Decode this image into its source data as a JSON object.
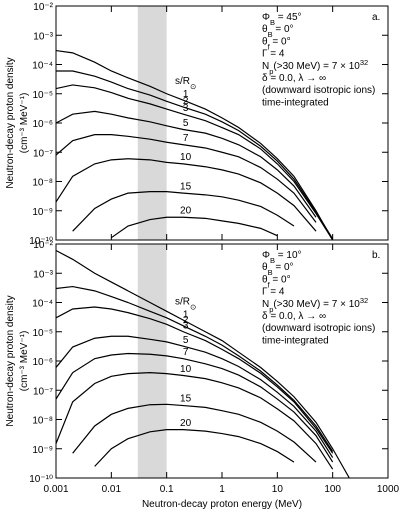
{
  "chart_data": [
    {
      "type": "line",
      "panel_label": "a.",
      "log_x": true,
      "log_y": true,
      "xtick_labels": false,
      "ylabel": [
        "Neutron-decay proton density",
        "(cm⁻³ MeV⁻¹)"
      ],
      "xlim": [
        0.001,
        1000
      ],
      "ylim": [
        1e-10,
        0.01
      ],
      "xticks": [
        0.001,
        0.01,
        0.1,
        1,
        10,
        100,
        1000
      ],
      "yticks": [
        {
          "value": 1e-10,
          "label": "10⁻¹⁰"
        },
        {
          "value": 1e-09,
          "label": "10⁻⁹"
        },
        {
          "value": 1e-08,
          "label": "10⁻⁸"
        },
        {
          "value": 1e-07,
          "label": "10⁻⁷"
        },
        {
          "value": 1e-06,
          "label": "10⁻⁶"
        },
        {
          "value": 1e-05,
          "label": "10⁻⁵"
        },
        {
          "value": 0.0001,
          "label": "10⁻⁴"
        },
        {
          "value": 0.001,
          "label": "10⁻³"
        },
        {
          "value": 0.01,
          "label": "10⁻²"
        }
      ],
      "shaded_band": [
        0.03,
        0.1
      ],
      "band_color": "#d9d9d9",
      "annotations": [
        [
          "Φ",
          {
            "sub": "B"
          },
          " = 45°"
        ],
        [
          "θ",
          {
            "sub": "B"
          },
          " = 0°"
        ],
        [
          "θ",
          {
            "sub": "f"
          },
          " = 0°"
        ],
        [
          "Γ = 4"
        ],
        [
          "N",
          {
            "sub": "p"
          },
          "(>30 MeV) = 7 × 10",
          {
            "sup": "32"
          }
        ],
        [
          "δ = 0.0, λ → ∞"
        ],
        [
          "(downward isotropic ions)"
        ],
        [
          "time-integrated"
        ]
      ],
      "legend_title": [
        "s/R",
        {
          "sub": "⊙"
        }
      ],
      "x": [
        0.001,
        0.002,
        0.005,
        0.01,
        0.02,
        0.05,
        0.1,
        0.2,
        0.5,
        1,
        2,
        5,
        10,
        20,
        50,
        100,
        200
      ],
      "series": [
        {
          "name": "1",
          "color": "#000000",
          "values": [
            0.0003,
            0.00025,
            0.00012,
            6e-05,
            3.5e-05,
            1.8e-05,
            1e-05,
            6e-06,
            3e-06,
            1.5e-06,
            7e-07,
            2e-07,
            6e-08,
            1.5e-08,
            1e-09,
            1e-10,
            null
          ]
        },
        {
          "name": "2",
          "color": "#000000",
          "values": [
            6e-05,
            6e-05,
            4e-05,
            2.5e-05,
            1.5e-05,
            9e-06,
            5.5e-06,
            3.5e-06,
            2e-06,
            1.1e-06,
            5.5e-07,
            1.6e-07,
            5e-08,
            1.2e-08,
            9e-10,
            1.1e-10,
            null
          ]
        },
        {
          "name": "3",
          "color": "#000000",
          "values": [
            1.5e-05,
            2e-05,
            1.6e-05,
            1.1e-05,
            7e-06,
            4.5e-06,
            3e-06,
            2e-06,
            1.2e-06,
            7e-07,
            4e-07,
            1.3e-07,
            4e-08,
            1e-08,
            8e-10,
            1e-10,
            null
          ]
        },
        {
          "name": "5",
          "color": "#000000",
          "values": [
            1e-06,
            2e-06,
            2.5e-06,
            2e-06,
            1.5e-06,
            1.1e-06,
            8e-07,
            6e-07,
            4.5e-07,
            3e-07,
            1.8e-07,
            7e-08,
            2.5e-08,
            7e-09,
            6e-10,
            null,
            null
          ]
        },
        {
          "name": "7",
          "color": "#000000",
          "values": [
            8e-08,
            2.5e-07,
            4e-07,
            4e-07,
            3.5e-07,
            2.8e-07,
            2.2e-07,
            1.8e-07,
            1.4e-07,
            1e-07,
            7e-08,
            3e-08,
            1.2e-08,
            4e-09,
            4e-10,
            null,
            null
          ]
        },
        {
          "name": "10",
          "color": "#000000",
          "values": [
            2e-09,
            1.5e-08,
            4e-08,
            5.5e-08,
            6e-08,
            5.5e-08,
            4.5e-08,
            4e-08,
            3.2e-08,
            2.5e-08,
            1.8e-08,
            9e-09,
            4e-09,
            1.5e-09,
            2e-10,
            null,
            null
          ]
        },
        {
          "name": "15",
          "color": "#000000",
          "values": [
            null,
            2e-10,
            1.2e-09,
            2.5e-09,
            4e-09,
            4.5e-09,
            4.5e-09,
            4e-09,
            3.5e-09,
            3e-09,
            2.3e-09,
            1.4e-09,
            7e-10,
            3e-10,
            null,
            null,
            null
          ]
        },
        {
          "name": "20",
          "color": "#000000",
          "values": [
            null,
            null,
            null,
            1.2e-10,
            3e-10,
            5e-10,
            6e-10,
            6e-10,
            5.5e-10,
            4.5e-10,
            3.7e-10,
            2.5e-10,
            1.4e-10,
            null,
            null,
            null,
            null
          ]
        }
      ]
    },
    {
      "type": "line",
      "panel_label": "b.",
      "log_x": true,
      "log_y": true,
      "xtick_labels": true,
      "xlabel": "Neutron-decay proton energy (MeV)",
      "ylabel": [
        "Neutron-decay proton density",
        "(cm⁻³ MeV⁻¹)"
      ],
      "xlim": [
        0.001,
        1000
      ],
      "ylim": [
        1e-10,
        0.01
      ],
      "xticks": [
        0.001,
        0.01,
        0.1,
        1,
        10,
        100,
        1000
      ],
      "yticks": [
        {
          "value": 1e-10,
          "label": "10⁻¹⁰"
        },
        {
          "value": 1e-09,
          "label": "10⁻⁹"
        },
        {
          "value": 1e-08,
          "label": "10⁻⁸"
        },
        {
          "value": 1e-07,
          "label": "10⁻⁷"
        },
        {
          "value": 1e-06,
          "label": "10⁻⁶"
        },
        {
          "value": 1e-05,
          "label": "10⁻⁵"
        },
        {
          "value": 0.0001,
          "label": "10⁻⁴"
        },
        {
          "value": 0.001,
          "label": "10⁻³"
        },
        {
          "value": 0.01,
          "label": "10⁻²"
        }
      ],
      "shaded_band": [
        0.03,
        0.1
      ],
      "band_color": "#d9d9d9",
      "annotations": [
        [
          "Φ",
          {
            "sub": "B"
          },
          " = 10°"
        ],
        [
          "θ",
          {
            "sub": "B"
          },
          " = 0°"
        ],
        [
          "θ",
          {
            "sub": "f"
          },
          " = 0°"
        ],
        [
          "Γ = 4"
        ],
        [
          "N",
          {
            "sub": "p"
          },
          "(>30 MeV) = 7 × 10",
          {
            "sup": "32"
          }
        ],
        [
          "δ = 0.0, λ → ∞"
        ],
        [
          "(downward isotropic ions)"
        ],
        [
          "time-integrated"
        ]
      ],
      "legend_title": [
        "s/R",
        {
          "sub": "⊙"
        }
      ],
      "x": [
        0.001,
        0.002,
        0.005,
        0.01,
        0.02,
        0.05,
        0.1,
        0.2,
        0.5,
        1,
        2,
        5,
        10,
        20,
        50,
        100,
        200
      ],
      "series": [
        {
          "name": "1",
          "color": "#000000",
          "values": [
            0.006,
            0.003,
            0.001,
            0.0005,
            0.00025,
            0.0001,
            5e-05,
            2.5e-05,
            1e-05,
            5e-06,
            2e-06,
            6e-07,
            2e-07,
            6e-08,
            8e-09,
            1e-09,
            1e-10
          ]
        },
        {
          "name": "2",
          "color": "#000000",
          "values": [
            0.0003,
            0.00035,
            0.00025,
            0.00016,
            0.0001,
            5e-05,
            3e-05,
            1.6e-05,
            7e-06,
            3.5e-06,
            1.5e-06,
            4.5e-07,
            1.5e-07,
            4.5e-08,
            6e-09,
            8e-10,
            null
          ]
        },
        {
          "name": "3",
          "color": "#000000",
          "values": [
            3e-05,
            6e-05,
            7e-05,
            6e-05,
            4.5e-05,
            2.8e-05,
            1.8e-05,
            1e-05,
            5e-06,
            2.5e-06,
            1.2e-06,
            3.8e-07,
            1.3e-07,
            4e-08,
            5e-09,
            7e-10,
            null
          ]
        },
        {
          "name": "5",
          "color": "#000000",
          "values": [
            6e-07,
            3e-06,
            6e-06,
            7e-06,
            7e-06,
            5.5e-06,
            4.5e-06,
            3.2e-06,
            2e-06,
            1.2e-06,
            6.5e-07,
            2.3e-07,
            8.5e-08,
            2.8e-08,
            4e-09,
            5e-10,
            null
          ]
        },
        {
          "name": "7",
          "color": "#000000",
          "values": [
            5e-08,
            4e-07,
            1.2e-06,
            1.6e-06,
            1.8e-06,
            1.7e-06,
            1.5e-06,
            1.2e-06,
            8e-07,
            5.5e-07,
            3.3e-07,
            1.3e-07,
            5e-08,
            1.8e-08,
            2.8e-09,
            3.5e-10,
            null
          ]
        },
        {
          "name": "10",
          "color": "#000000",
          "values": [
            1.5e-09,
            4e-08,
            1.7e-07,
            3e-07,
            3.7e-07,
            4e-07,
            3.7e-07,
            3.2e-07,
            2.5e-07,
            1.8e-07,
            1.2e-07,
            5.5e-08,
            2.3e-08,
            9e-09,
            1.5e-09,
            2e-10,
            null
          ]
        },
        {
          "name": "15",
          "color": "#000000",
          "values": [
            null,
            7e-10,
            6e-09,
            1.5e-08,
            2.4e-08,
            3.2e-08,
            3.3e-08,
            3e-08,
            2.6e-08,
            2e-08,
            1.5e-08,
            8e-09,
            4e-09,
            1.7e-09,
            3.5e-10,
            null,
            null
          ]
        },
        {
          "name": "20",
          "color": "#000000",
          "values": [
            null,
            null,
            2.5e-10,
            1e-09,
            2.2e-09,
            3.8e-09,
            4.5e-09,
            4.5e-09,
            4e-09,
            3.3e-09,
            2.6e-09,
            1.5e-09,
            8e-10,
            3.5e-10,
            null,
            null,
            null
          ]
        }
      ]
    }
  ]
}
